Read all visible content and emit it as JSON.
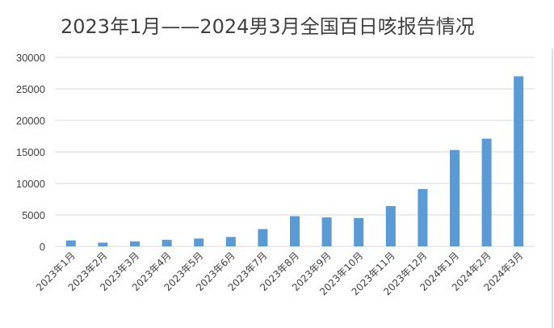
{
  "chart_data": {
    "type": "bar",
    "title": "2023年1月——2024男3月全国百日咳报告情况",
    "xlabel": "",
    "ylabel": "",
    "ylim": [
      0,
      30000
    ],
    "yticks": [
      0,
      5000,
      10000,
      15000,
      20000,
      25000,
      30000
    ],
    "grid": true,
    "legend": "none",
    "bar_color": "#5b9bd5",
    "categories": [
      "2023年1月",
      "2023年2月",
      "2023年3月",
      "2023年4月",
      "2023年5月",
      "2023年6月",
      "2023年7月",
      "2023年8月",
      "2023年9月",
      "2023年10月",
      "2023年11月",
      "2023年12月",
      "2024年1月",
      "2024年2月",
      "2024年3月"
    ],
    "values": [
      950,
      600,
      800,
      1050,
      1250,
      1500,
      2750,
      4800,
      4600,
      4500,
      6400,
      9100,
      15300,
      17100,
      27000
    ]
  }
}
